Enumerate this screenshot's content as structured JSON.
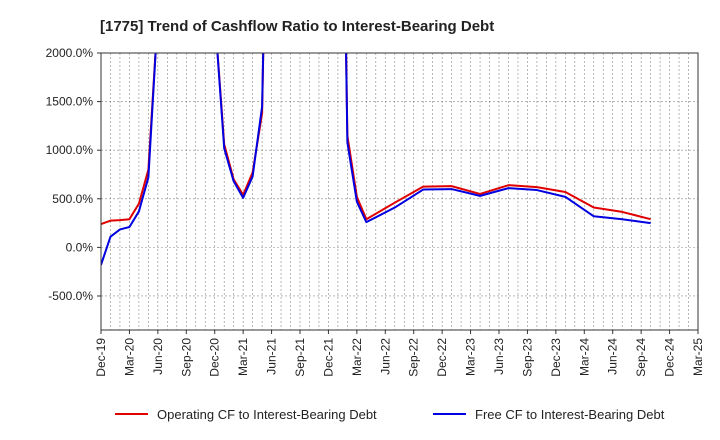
{
  "chart_data": {
    "type": "line",
    "title": "[1775]  Trend of Cashflow Ratio to Interest-Bearing Debt",
    "xlabel": "",
    "ylabel": "",
    "x_tick_labels": [
      "Dec-19",
      "Mar-20",
      "Jun-20",
      "Sep-20",
      "Dec-20",
      "Mar-21",
      "Jun-21",
      "Sep-21",
      "Dec-21",
      "Mar-22",
      "Jun-22",
      "Sep-22",
      "Dec-22",
      "Mar-23",
      "Jun-23",
      "Sep-23",
      "Dec-23",
      "Mar-24",
      "Jun-24",
      "Sep-24",
      "Dec-24",
      "Mar-25"
    ],
    "y_tick_labels": [
      "2000.0%",
      "1500.0%",
      "1000.0%",
      "500.0%",
      "0.0%",
      "-500.0%"
    ],
    "y_ticks": [
      2000,
      1500,
      1000,
      500,
      0,
      -500
    ],
    "ylim": [
      -850,
      2000
    ],
    "x_range_months": [
      0,
      63
    ],
    "grid": true,
    "legend_position": "bottom",
    "series": [
      {
        "name": "Operating CF to Interest-Bearing Debt",
        "color": "#e00000",
        "points": [
          {
            "m": 0,
            "v": 240
          },
          {
            "m": 1,
            "v": 275
          },
          {
            "m": 2,
            "v": 280
          },
          {
            "m": 3,
            "v": 290
          },
          {
            "m": 4,
            "v": 450
          },
          {
            "m": 5,
            "v": 800
          },
          {
            "m": 6,
            "v": 2400
          },
          {
            "m": 12,
            "v": 2400
          },
          {
            "m": 13,
            "v": 1060
          },
          {
            "m": 14,
            "v": 700
          },
          {
            "m": 15,
            "v": 540
          },
          {
            "m": 16,
            "v": 770
          },
          {
            "m": 17,
            "v": 1380
          },
          {
            "m": 17.2,
            "v": 2400
          },
          {
            "m": 25.8,
            "v": 2400
          },
          {
            "m": 26,
            "v": 1150
          },
          {
            "m": 27,
            "v": 520
          },
          {
            "m": 28,
            "v": 290
          },
          {
            "m": 31,
            "v": 460
          },
          {
            "m": 34,
            "v": 625
          },
          {
            "m": 37,
            "v": 630
          },
          {
            "m": 40,
            "v": 550
          },
          {
            "m": 43,
            "v": 640
          },
          {
            "m": 46,
            "v": 620
          },
          {
            "m": 49,
            "v": 570
          },
          {
            "m": 52,
            "v": 410
          },
          {
            "m": 55,
            "v": 365
          },
          {
            "m": 58,
            "v": 290
          }
        ]
      },
      {
        "name": "Free CF to Interest-Bearing Debt",
        "color": "#0000e0",
        "points": [
          {
            "m": 0,
            "v": -180
          },
          {
            "m": 1,
            "v": 110
          },
          {
            "m": 2,
            "v": 185
          },
          {
            "m": 3,
            "v": 210
          },
          {
            "m": 4,
            "v": 370
          },
          {
            "m": 5,
            "v": 720
          },
          {
            "m": 6,
            "v": 2400
          },
          {
            "m": 12,
            "v": 2400
          },
          {
            "m": 13,
            "v": 1020
          },
          {
            "m": 14,
            "v": 680
          },
          {
            "m": 15,
            "v": 510
          },
          {
            "m": 16,
            "v": 730
          },
          {
            "m": 17,
            "v": 1450
          },
          {
            "m": 17.2,
            "v": 2400
          },
          {
            "m": 25.8,
            "v": 2400
          },
          {
            "m": 26,
            "v": 1080
          },
          {
            "m": 27,
            "v": 470
          },
          {
            "m": 28,
            "v": 260
          },
          {
            "m": 31,
            "v": 410
          },
          {
            "m": 34,
            "v": 595
          },
          {
            "m": 37,
            "v": 600
          },
          {
            "m": 40,
            "v": 530
          },
          {
            "m": 43,
            "v": 610
          },
          {
            "m": 46,
            "v": 590
          },
          {
            "m": 49,
            "v": 520
          },
          {
            "m": 52,
            "v": 320
          },
          {
            "m": 55,
            "v": 290
          },
          {
            "m": 58,
            "v": 250
          }
        ]
      }
    ]
  }
}
